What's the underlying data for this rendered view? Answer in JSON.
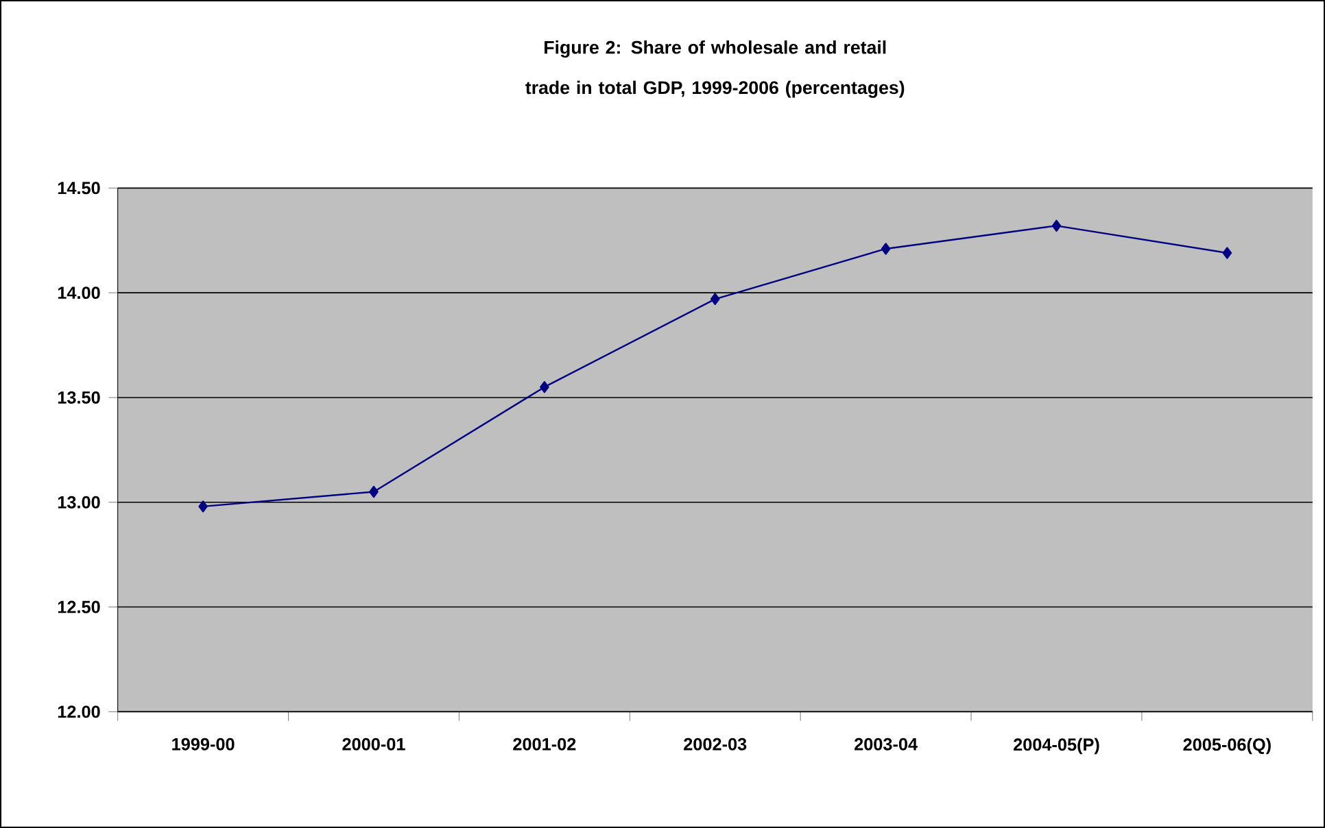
{
  "chart_data": {
    "type": "line",
    "title": "Figure 2: Share of wholesale and retail trade in total GDP, 1999-2006 (percentages)",
    "categories": [
      "1999-00",
      "2000-01",
      "2001-02",
      "2002-03",
      "2003-04",
      "2004-05(P)",
      "2005-06(Q)"
    ],
    "series": [
      {
        "color": "#000080",
        "values": [
          12.98,
          13.05,
          13.55,
          13.97,
          14.21,
          14.32,
          14.19
        ]
      }
    ],
    "ylim": [
      12,
      14.5
    ],
    "yticks": [
      {
        "value": 12,
        "label": "12.00"
      },
      {
        "value": 12.5,
        "label": "12.50"
      },
      {
        "value": 13,
        "label": "13.00"
      },
      {
        "value": 13.5,
        "label": "13.50"
      },
      {
        "value": 14,
        "label": "14.00"
      },
      {
        "value": 14.5,
        "label": "14.50"
      }
    ],
    "grid": "y",
    "marker": "diamond",
    "line_style": "solid"
  }
}
